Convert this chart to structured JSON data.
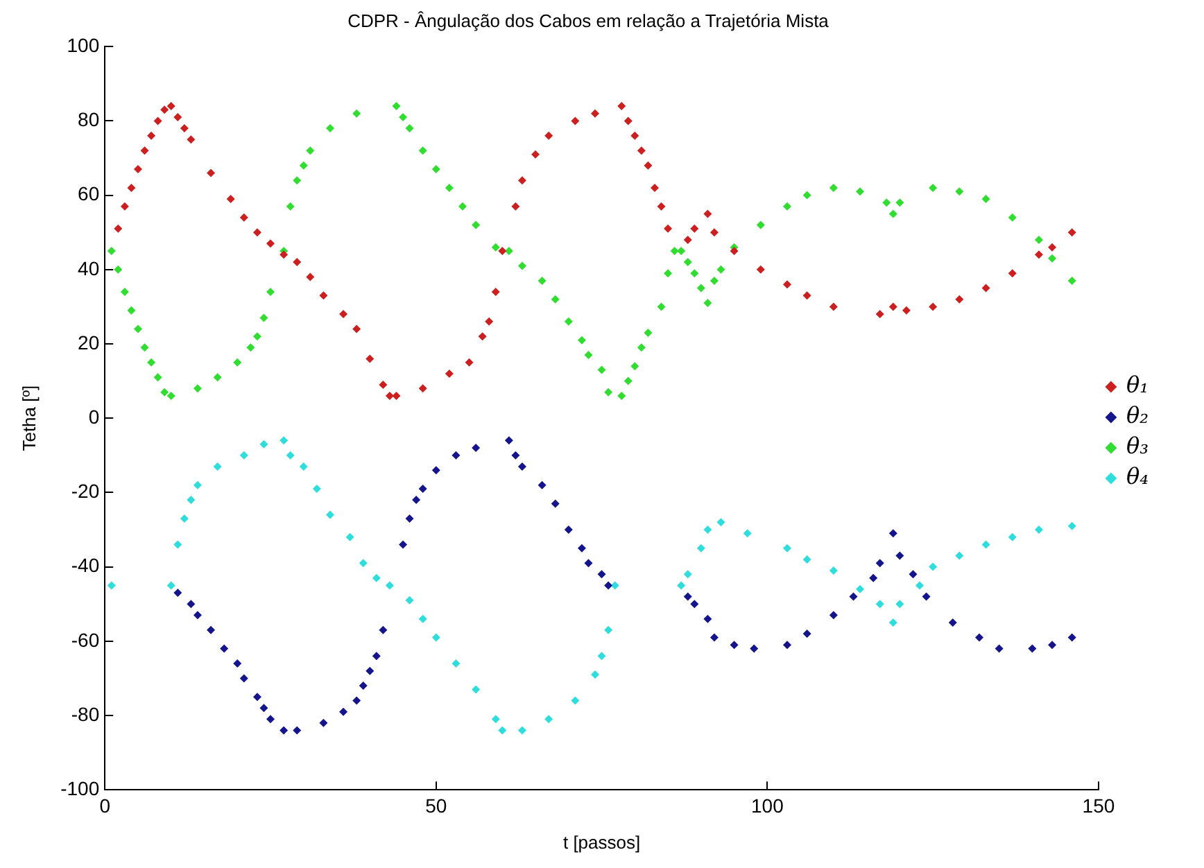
{
  "chart_data": {
    "type": "scatter",
    "title": "CDPR - Ângulação dos Cabos em relação a Trajetória Mista",
    "xlabel": "t [passos]",
    "ylabel": "Tetha [º]",
    "xlim": [
      0,
      150
    ],
    "xticks": [
      0,
      50,
      100,
      150
    ],
    "ylim": [
      -100,
      100
    ],
    "yticks": [
      -100,
      -80,
      -60,
      -40,
      -20,
      0,
      20,
      40,
      60,
      80,
      100
    ],
    "grid": false,
    "legend": "right",
    "marker": "diamond",
    "series": [
      {
        "name": "θ₁",
        "color": "#cc2020",
        "x": [
          2,
          3,
          4,
          5,
          6,
          7,
          8,
          9,
          10,
          11,
          12,
          13,
          16,
          19,
          21,
          23,
          25,
          27,
          29,
          31,
          33,
          36,
          38,
          40,
          42,
          43,
          44,
          48,
          52,
          55,
          57,
          58,
          59,
          60,
          62,
          63,
          65,
          67,
          71,
          74,
          78,
          79,
          80,
          81,
          82,
          83,
          84,
          85,
          88,
          89,
          91,
          92,
          95,
          99,
          103,
          106,
          110,
          117,
          119,
          121,
          125,
          129,
          133,
          137,
          141,
          143,
          146
        ],
        "values": [
          51,
          57,
          62,
          67,
          72,
          76,
          80,
          83,
          84,
          81,
          78,
          75,
          66,
          59,
          54,
          50,
          47,
          44,
          42,
          38,
          33,
          28,
          24,
          16,
          9,
          6,
          6,
          8,
          12,
          15,
          22,
          26,
          34,
          45,
          57,
          64,
          71,
          76,
          80,
          82,
          84,
          80,
          76,
          72,
          68,
          62,
          57,
          51,
          48,
          51,
          55,
          50,
          45,
          40,
          36,
          33,
          30,
          28,
          30,
          29,
          30,
          32,
          35,
          39,
          44,
          46,
          50
        ]
      },
      {
        "name": "θ₂",
        "color": "#14148c",
        "x": [
          11,
          13,
          14,
          16,
          18,
          20,
          21,
          23,
          24,
          25,
          27,
          29,
          33,
          36,
          38,
          39,
          40,
          41,
          42,
          45,
          46,
          47,
          48,
          50,
          53,
          56,
          61,
          62,
          63,
          66,
          68,
          70,
          72,
          73,
          75,
          76,
          88,
          89,
          91,
          92,
          95,
          98,
          103,
          106,
          110,
          113,
          116,
          117,
          119,
          120,
          122,
          124,
          128,
          132,
          135,
          140,
          143,
          146
        ],
        "values": [
          -47,
          -50,
          -53,
          -57,
          -62,
          -66,
          -70,
          -75,
          -78,
          -81,
          -84,
          -84,
          -82,
          -79,
          -76,
          -72,
          -68,
          -64,
          -57,
          -34,
          -27,
          -22,
          -19,
          -14,
          -10,
          -8,
          -6,
          -10,
          -13,
          -18,
          -23,
          -30,
          -35,
          -39,
          -42,
          -45,
          -48,
          -50,
          -54,
          -59,
          -61,
          -62,
          -61,
          -58,
          -53,
          -48,
          -43,
          -39,
          -31,
          -37,
          -42,
          -48,
          -55,
          -59,
          -62,
          -62,
          -61,
          -59
        ]
      },
      {
        "name": "θ₃",
        "color": "#30dd30",
        "x": [
          1,
          2,
          3,
          4,
          5,
          6,
          7,
          8,
          9,
          10,
          14,
          17,
          20,
          22,
          23,
          24,
          25,
          27,
          28,
          29,
          30,
          31,
          34,
          38,
          44,
          45,
          46,
          48,
          50,
          52,
          54,
          56,
          59,
          61,
          63,
          66,
          68,
          70,
          72,
          73,
          75,
          76,
          78,
          79,
          80,
          81,
          82,
          84,
          85,
          86,
          87,
          88,
          89,
          90,
          91,
          92,
          93,
          95,
          99,
          103,
          106,
          110,
          114,
          118,
          119,
          120,
          125,
          129,
          133,
          137,
          141,
          143,
          146
        ],
        "values": [
          45,
          40,
          34,
          29,
          24,
          19,
          15,
          11,
          7,
          6,
          8,
          11,
          15,
          19,
          22,
          27,
          34,
          45,
          57,
          64,
          68,
          72,
          78,
          82,
          84,
          81,
          78,
          72,
          67,
          62,
          57,
          52,
          46,
          45,
          41,
          37,
          32,
          26,
          21,
          17,
          13,
          7,
          6,
          10,
          14,
          19,
          23,
          30,
          39,
          45,
          45,
          42,
          39,
          35,
          31,
          37,
          40,
          46,
          52,
          57,
          60,
          62,
          61,
          58,
          55,
          58,
          62,
          61,
          59,
          54,
          48,
          43,
          37
        ]
      },
      {
        "name": "θ₄",
        "color": "#30dddd",
        "x": [
          1,
          10,
          11,
          12,
          13,
          14,
          17,
          21,
          24,
          27,
          28,
          30,
          32,
          34,
          37,
          39,
          41,
          43,
          46,
          48,
          50,
          53,
          56,
          59,
          60,
          63,
          67,
          71,
          74,
          75,
          76,
          77,
          87,
          88,
          90,
          91,
          93,
          97,
          103,
          106,
          110,
          114,
          117,
          119,
          120,
          123,
          125,
          129,
          133,
          137,
          141,
          146
        ],
        "values": [
          -45,
          -45,
          -34,
          -27,
          -22,
          -18,
          -13,
          -10,
          -7,
          -6,
          -10,
          -13,
          -19,
          -26,
          -32,
          -39,
          -43,
          -45,
          -49,
          -54,
          -59,
          -66,
          -73,
          -81,
          -84,
          -84,
          -81,
          -76,
          -69,
          -64,
          -57,
          -45,
          -45,
          -42,
          -35,
          -30,
          -28,
          -31,
          -35,
          -38,
          -41,
          -46,
          -50,
          -55,
          -50,
          -45,
          -40,
          -37,
          -34,
          -32,
          -30,
          -29
        ]
      }
    ]
  }
}
